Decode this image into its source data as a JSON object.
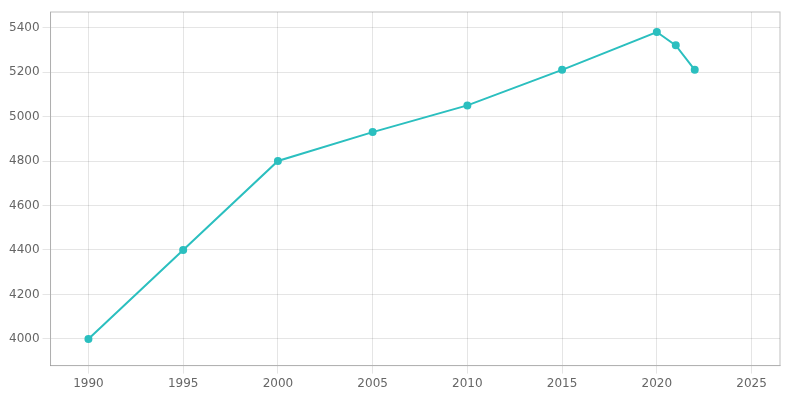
{
  "chart_data": {
    "type": "line",
    "x": [
      1990,
      1995,
      2000,
      2005,
      2010,
      2015,
      2020,
      2021,
      2022
    ],
    "values": [
      4000,
      4400,
      4800,
      4930,
      5050,
      5210,
      5380,
      5320,
      5210
    ],
    "color": "#2bbfbf",
    "marker": "circle",
    "xlim": [
      1988,
      2026.5
    ],
    "ylim": [
      3880,
      5470
    ],
    "xticks": [
      1990,
      1995,
      2000,
      2005,
      2010,
      2015,
      2020,
      2025
    ],
    "yticks": [
      4000,
      4200,
      4400,
      4600,
      4800,
      5000,
      5200,
      5400
    ],
    "grid": true
  }
}
